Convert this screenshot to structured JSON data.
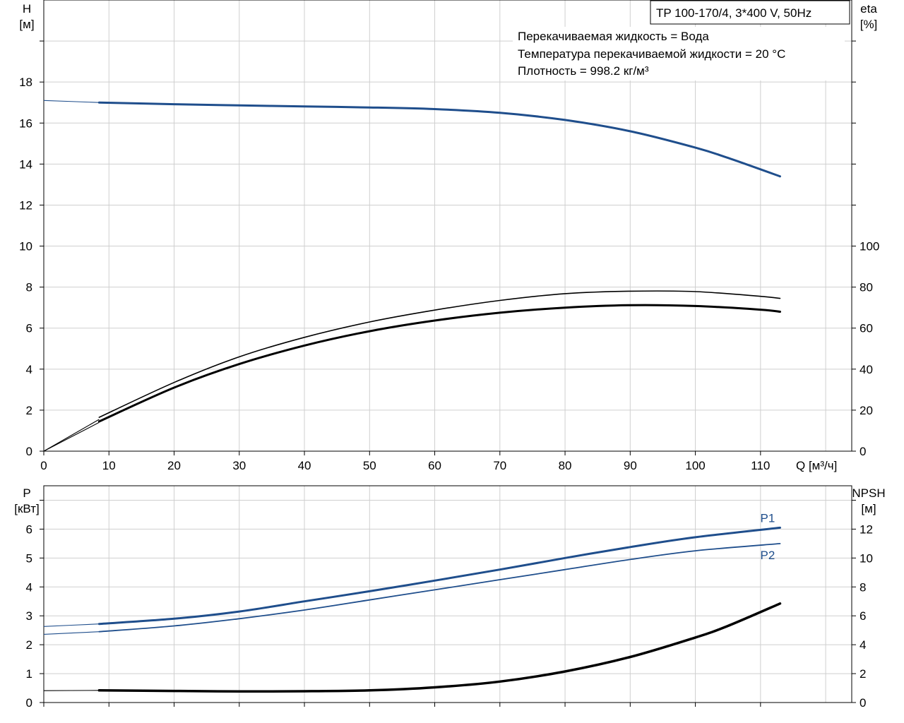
{
  "header": {
    "pump_title": "TP 100-170/4, 3*400 V, 50Hz",
    "info_lines": [
      "Перекачиваемая жидкость = Вода",
      "Температура перекачиваемой жидкости = 20 °C",
      "Плотность = 998.2 кг/м³"
    ]
  },
  "chart_data": [
    {
      "type": "line",
      "panel": "top",
      "axes": {
        "x": {
          "label": "Q [м³/ч]",
          "lim": [
            0,
            124
          ],
          "ticks": [
            0,
            10,
            20,
            30,
            40,
            50,
            60,
            70,
            80,
            90,
            100,
            110
          ]
        },
        "y_left": {
          "label_line1": "H",
          "label_line2": "[м]",
          "lim": [
            0,
            22
          ],
          "ticks": [
            0,
            2,
            4,
            6,
            8,
            10,
            12,
            14,
            16,
            18
          ]
        },
        "y_right": {
          "label_line1": "eta",
          "label_line2": "[%]",
          "lim": [
            0,
            220
          ],
          "ticks": [
            0,
            20,
            40,
            60,
            80,
            100
          ]
        }
      },
      "grid": true,
      "series": [
        {
          "name": "H",
          "axis": "left",
          "color": "#1f4e8c",
          "width": 3,
          "extrapolation": [
            [
              0,
              17.1
            ],
            [
              8.5,
              17.0
            ]
          ],
          "points": [
            [
              8.5,
              17.0
            ],
            [
              20,
              16.92
            ],
            [
              30,
              16.86
            ],
            [
              40,
              16.81
            ],
            [
              50,
              16.76
            ],
            [
              60,
              16.68
            ],
            [
              70,
              16.5
            ],
            [
              80,
              16.15
            ],
            [
              90,
              15.6
            ],
            [
              100,
              14.8
            ],
            [
              105,
              14.3
            ],
            [
              113,
              13.4
            ]
          ]
        },
        {
          "name": "eta",
          "axis": "right",
          "color": "#000000",
          "width": 3,
          "extrapolation": [
            [
              0,
              0
            ],
            [
              8.5,
              14
            ]
          ],
          "points": [
            [
              8.5,
              14.5
            ],
            [
              20,
              31
            ],
            [
              30,
              42.5
            ],
            [
              40,
              51.5
            ],
            [
              50,
              58.5
            ],
            [
              60,
              63.7
            ],
            [
              70,
              67.5
            ],
            [
              80,
              70
            ],
            [
              90,
              71.2
            ],
            [
              100,
              70.8
            ],
            [
              110,
              69
            ],
            [
              113,
              68
            ]
          ]
        },
        {
          "name": "eta (thin)",
          "axis": "right",
          "color": "#000000",
          "width": 1.6,
          "extrapolation": [
            [
              0,
              0
            ],
            [
              8.5,
              15.5
            ]
          ],
          "points": [
            [
              8.5,
              16.5
            ],
            [
              20,
              33.5
            ],
            [
              30,
              46
            ],
            [
              40,
              55.5
            ],
            [
              50,
              63
            ],
            [
              60,
              68.8
            ],
            [
              70,
              73.5
            ],
            [
              80,
              76.8
            ],
            [
              90,
              78
            ],
            [
              100,
              77.8
            ],
            [
              110,
              75.5
            ],
            [
              113,
              74.5
            ]
          ]
        }
      ]
    },
    {
      "type": "line",
      "panel": "bottom",
      "axes": {
        "x": {
          "lim": [
            0,
            124
          ],
          "ticks": [
            0,
            10,
            20,
            30,
            40,
            50,
            60,
            70,
            80,
            90,
            100,
            110
          ]
        },
        "y_left": {
          "label_line1": "P",
          "label_line2": "[кВт]",
          "lim": [
            0,
            7.5
          ],
          "ticks": [
            0,
            1,
            2,
            3,
            4,
            5,
            6
          ]
        },
        "y_right": {
          "label_line1": "NPSH",
          "label_line2": "[м]",
          "lim": [
            0,
            15
          ],
          "ticks": [
            0,
            2,
            4,
            6,
            8,
            10,
            12
          ]
        }
      },
      "grid": true,
      "series": [
        {
          "name": "P1",
          "axis": "left",
          "color": "#1f4e8c",
          "width": 3,
          "label_shown": "P1",
          "extrapolation": [
            [
              0,
              2.63
            ],
            [
              8.5,
              2.72
            ]
          ],
          "points": [
            [
              8.5,
              2.72
            ],
            [
              20,
              2.9
            ],
            [
              30,
              3.15
            ],
            [
              40,
              3.5
            ],
            [
              50,
              3.85
            ],
            [
              60,
              4.22
            ],
            [
              70,
              4.6
            ],
            [
              80,
              5.0
            ],
            [
              90,
              5.38
            ],
            [
              100,
              5.72
            ],
            [
              113,
              6.05
            ]
          ]
        },
        {
          "name": "P2",
          "axis": "left",
          "color": "#1f4e8c",
          "width": 1.8,
          "label_shown": "P2",
          "extrapolation": [
            [
              0,
              2.36
            ],
            [
              8.5,
              2.45
            ]
          ],
          "points": [
            [
              8.5,
              2.45
            ],
            [
              20,
              2.65
            ],
            [
              30,
              2.9
            ],
            [
              40,
              3.2
            ],
            [
              50,
              3.55
            ],
            [
              60,
              3.9
            ],
            [
              70,
              4.25
            ],
            [
              80,
              4.6
            ],
            [
              90,
              4.95
            ],
            [
              100,
              5.25
            ],
            [
              113,
              5.5
            ]
          ]
        },
        {
          "name": "NPSH",
          "axis": "right",
          "color": "#000000",
          "width": 3.5,
          "extrapolation": [
            [
              0,
              0.82
            ],
            [
              8.5,
              0.84
            ]
          ],
          "points": [
            [
              8.5,
              0.84
            ],
            [
              20,
              0.8
            ],
            [
              30,
              0.77
            ],
            [
              40,
              0.78
            ],
            [
              50,
              0.84
            ],
            [
              60,
              1.05
            ],
            [
              70,
              1.45
            ],
            [
              80,
              2.15
            ],
            [
              90,
              3.15
            ],
            [
              100,
              4.5
            ],
            [
              105,
              5.3
            ],
            [
              113,
              6.85
            ]
          ]
        }
      ]
    }
  ]
}
